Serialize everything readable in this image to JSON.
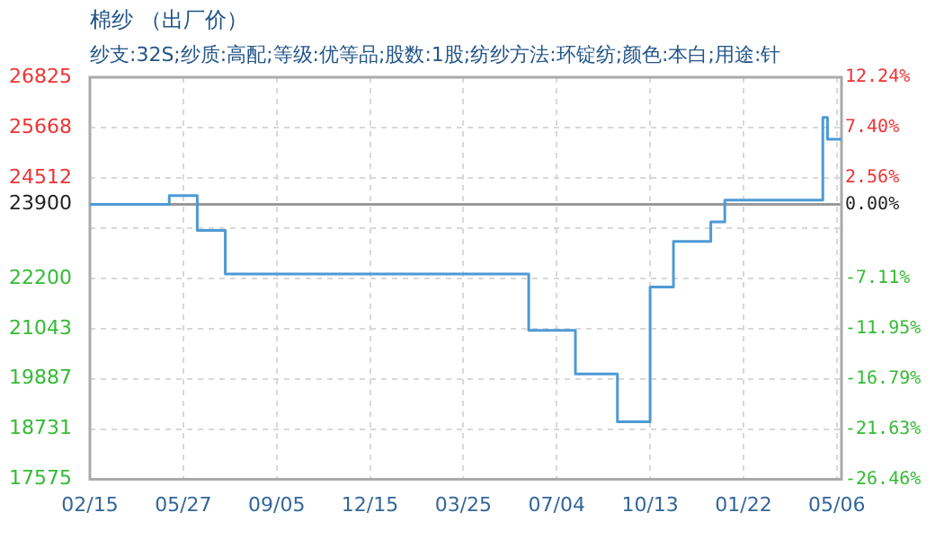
{
  "chart_data": {
    "type": "step",
    "title": "棉纱 （出厂价）",
    "subtitle": "纱支:32S;纱质:高配;等级:优等品;股数:1股;纺纱方法:环锭纺;颜色:本白;用途:针",
    "categories": [
      "02/15",
      null,
      null,
      null,
      null,
      null,
      null,
      null,
      null,
      null,
      null,
      null,
      null,
      null,
      null,
      null,
      null,
      null,
      null,
      null,
      "05/27",
      null,
      null,
      null,
      null,
      null,
      null,
      null,
      null,
      null,
      null,
      null,
      null,
      null,
      null,
      null,
      null,
      null,
      null,
      null,
      "09/05",
      null,
      null,
      null,
      null,
      null,
      null,
      null,
      null,
      null,
      null,
      null,
      null,
      null,
      null,
      null,
      null,
      null,
      null,
      null,
      "12/15",
      null,
      null,
      null,
      null,
      null,
      null,
      null,
      null,
      null,
      null,
      null,
      null,
      null,
      null,
      null,
      null,
      null,
      null,
      null,
      "03/25",
      null,
      null,
      null,
      null,
      null,
      null,
      null,
      null,
      null,
      null,
      null,
      null,
      null,
      null,
      null,
      null,
      null,
      null,
      null,
      "07/04",
      null,
      null,
      null,
      null,
      null,
      null,
      null,
      null,
      null,
      null,
      null,
      null,
      null,
      null,
      null,
      null,
      null,
      null,
      null,
      "10/13",
      null,
      null,
      null,
      null,
      null,
      null,
      null,
      null,
      null,
      null,
      null,
      null,
      null,
      null,
      null,
      null,
      null,
      null,
      null,
      "01/22",
      null,
      null,
      null,
      null,
      null,
      null,
      null,
      null,
      null,
      null,
      null,
      null,
      null,
      null,
      null,
      null,
      null,
      null,
      null,
      "05/06",
      null
    ],
    "series": [
      {
        "color": "#4d9ad6",
        "values": [
          23900,
          23900,
          23900,
          23900,
          23900,
          23900,
          23900,
          23900,
          23900,
          23900,
          23900,
          23900,
          23900,
          23900,
          23900,
          23900,
          23900,
          24100,
          24100,
          24100,
          24100,
          24100,
          24100,
          23300,
          23300,
          23300,
          23300,
          23300,
          23300,
          22300,
          22300,
          22300,
          22300,
          22300,
          22300,
          22300,
          22300,
          22300,
          22300,
          22300,
          22300,
          22300,
          22300,
          22300,
          22300,
          22300,
          22300,
          22300,
          22300,
          22300,
          22300,
          22300,
          22300,
          22300,
          22300,
          22300,
          22300,
          22300,
          22300,
          22300,
          22300,
          22300,
          22300,
          22300,
          22300,
          22300,
          22300,
          22300,
          22300,
          22300,
          22300,
          22300,
          22300,
          22300,
          22300,
          22300,
          22300,
          22300,
          22300,
          22300,
          22300,
          22300,
          22300,
          22300,
          22300,
          22300,
          22300,
          22300,
          22300,
          22300,
          22300,
          22300,
          22300,
          22300,
          21000,
          21000,
          21000,
          21000,
          21000,
          21000,
          21000,
          21000,
          21000,
          21000,
          20000,
          20000,
          20000,
          20000,
          20000,
          20000,
          20000,
          20000,
          20000,
          18900,
          18900,
          18900,
          18900,
          18900,
          18900,
          18900,
          22000,
          22000,
          22000,
          22000,
          22000,
          23050,
          23050,
          23050,
          23050,
          23050,
          23050,
          23050,
          23050,
          23500,
          23500,
          23500,
          24000,
          24000,
          24000,
          24000,
          24000,
          24000,
          24000,
          24000,
          24000,
          24000,
          24000,
          24000,
          24000,
          24000,
          24000,
          24000,
          24000,
          24000,
          24000,
          24000,
          24000,
          25900,
          25400,
          25400,
          25400,
          25400
        ]
      }
    ],
    "ylim": [
      17575,
      26825
    ],
    "yticks": [
      17575,
      18731,
      19887,
      21043,
      22200,
      {
        "value": 23356,
        "label": null
      },
      23900,
      24512,
      25668,
      26825
    ],
    "y2lim": [
      -26.46,
      12.24
    ],
    "y2ticks": [
      {
        "value": -26.46,
        "label": "-26.46%"
      },
      {
        "value": -21.63,
        "label": "-21.63%"
      },
      {
        "value": -16.79,
        "label": "-16.79%"
      },
      {
        "value": -11.95,
        "label": "-11.95%"
      },
      {
        "value": -7.11,
        "label": "-7.11%"
      },
      {
        "value": 0,
        "label": "0.00%"
      },
      {
        "value": 2.56,
        "label": "2.56%"
      },
      {
        "value": 7.4,
        "label": "7.40%"
      },
      {
        "value": 12.24,
        "label": "12.24%"
      }
    ],
    "ref_lines": [
      {
        "axis": "y",
        "value": 23900,
        "color": "#999999"
      }
    ],
    "grid": true,
    "legend": false,
    "marker": "none",
    "line_style": "solid"
  }
}
